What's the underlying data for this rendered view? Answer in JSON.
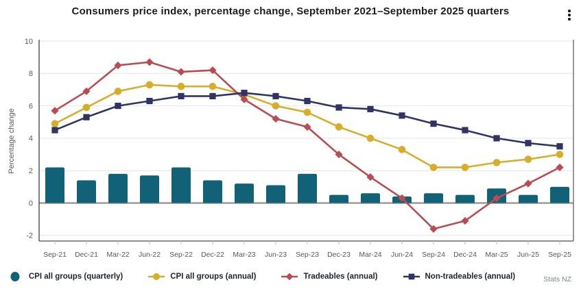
{
  "header": {
    "title": "Consumers price index, percentage change, September 2021–September 2025 quarters"
  },
  "chart_data": {
    "type": "combo-bar-line",
    "title": "Consumers price index, percentage change, September 2021–September 2025 quarters",
    "ylabel": "Percentage change",
    "xlabel": "",
    "yticks": [
      10,
      8,
      6,
      4,
      2,
      0,
      -2
    ],
    "ylim": [
      -2.7,
      10.3
    ],
    "grid": true,
    "legend_position": "bottom",
    "categories": [
      "Sep-21",
      "Dec-21",
      "Mar-22",
      "Jun-22",
      "Sep-22",
      "Dec-22",
      "Mar-23",
      "Jun-23",
      "Sep-23",
      "Dec-23",
      "Mar-24",
      "Jun-24",
      "Sep-24",
      "Dec-24",
      "Mar-25",
      "Jun-25",
      "Sep-25"
    ],
    "bar_series": {
      "name": "CPI all groups (quarterly)",
      "color": "#116277",
      "marker": "dot",
      "values": [
        2.2,
        1.4,
        1.8,
        1.7,
        2.2,
        1.4,
        1.2,
        1.1,
        1.8,
        0.5,
        0.6,
        0.4,
        0.6,
        0.5,
        0.9,
        0.5,
        1.0
      ]
    },
    "line_series": [
      {
        "name": "CPI all groups (annual)",
        "color": "#d8ad29",
        "marker": "circle",
        "values": [
          4.9,
          5.9,
          6.9,
          7.3,
          7.2,
          7.2,
          6.7,
          6.0,
          5.6,
          4.7,
          4.0,
          3.3,
          2.2,
          2.2,
          2.5,
          2.7,
          3.0
        ]
      },
      {
        "name": "Tradeables (annual)",
        "color": "#b94b51",
        "marker": "diamond",
        "values": [
          5.7,
          6.9,
          8.5,
          8.7,
          8.1,
          8.2,
          6.4,
          5.2,
          4.7,
          3.0,
          1.6,
          0.3,
          -1.6,
          -1.1,
          0.3,
          1.2,
          2.2
        ]
      },
      {
        "name": "Non-tradeables (annual)",
        "color": "#2f3366",
        "marker": "square",
        "values": [
          4.5,
          5.3,
          6.0,
          6.3,
          6.6,
          6.6,
          6.8,
          6.6,
          6.3,
          5.9,
          5.8,
          5.4,
          4.9,
          4.5,
          4.0,
          3.7,
          3.5
        ]
      }
    ]
  },
  "source": {
    "label": "Stats NZ"
  }
}
